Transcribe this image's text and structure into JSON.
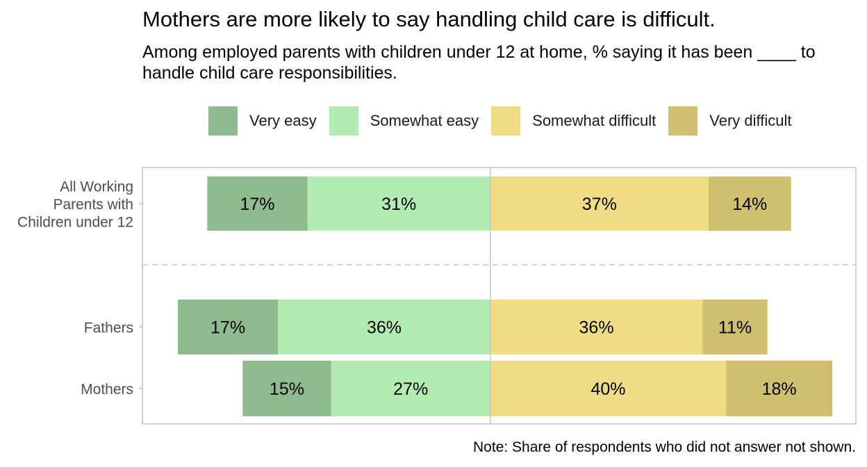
{
  "title": "Mothers are more likely to say handling child care is difficult.",
  "subtitle": "Among employed parents with children under 12 at home, % saying it has been ____ to handle child care responsibilities.",
  "note": "Note: Share of respondents who did not answer not shown.",
  "legend": [
    {
      "label": "Very easy",
      "color": "#8fbc8f"
    },
    {
      "label": "Somewhat easy",
      "color": "#b3ecb3"
    },
    {
      "label": "Somewhat difficult",
      "color": "#eedd82"
    },
    {
      "label": "Very difficult",
      "color": "#cfbf6f"
    }
  ],
  "chart_data": {
    "type": "bar",
    "orientation": "horizontal-diverging-stacked",
    "categories": [
      "All Working Parents with Children under 12",
      "Fathers",
      "Mothers"
    ],
    "category_lines": [
      [
        "All Working",
        "Parents with",
        "Children under 12"
      ],
      [
        "Fathers"
      ],
      [
        "Mothers"
      ]
    ],
    "series": [
      {
        "name": "Very easy",
        "values": [
          17,
          17,
          15
        ],
        "labels": [
          "17%",
          "17%",
          "15%"
        ],
        "color": "#8fbc8f",
        "side": "negative"
      },
      {
        "name": "Somewhat easy",
        "values": [
          31,
          36,
          27
        ],
        "labels": [
          "31%",
          "36%",
          "27%"
        ],
        "color": "#b3ecb3",
        "side": "negative"
      },
      {
        "name": "Somewhat difficult",
        "values": [
          37,
          36,
          40
        ],
        "labels": [
          "37%",
          "36%",
          "40%"
        ],
        "color": "#eedd82",
        "side": "positive"
      },
      {
        "name": "Very difficult",
        "values": [
          14,
          11,
          18
        ],
        "labels": [
          "14%",
          "11%",
          "18%"
        ],
        "color": "#cfbf6f",
        "side": "positive"
      }
    ],
    "xlim": [
      -59,
      62
    ],
    "legend_position": "top",
    "grid": false
  }
}
